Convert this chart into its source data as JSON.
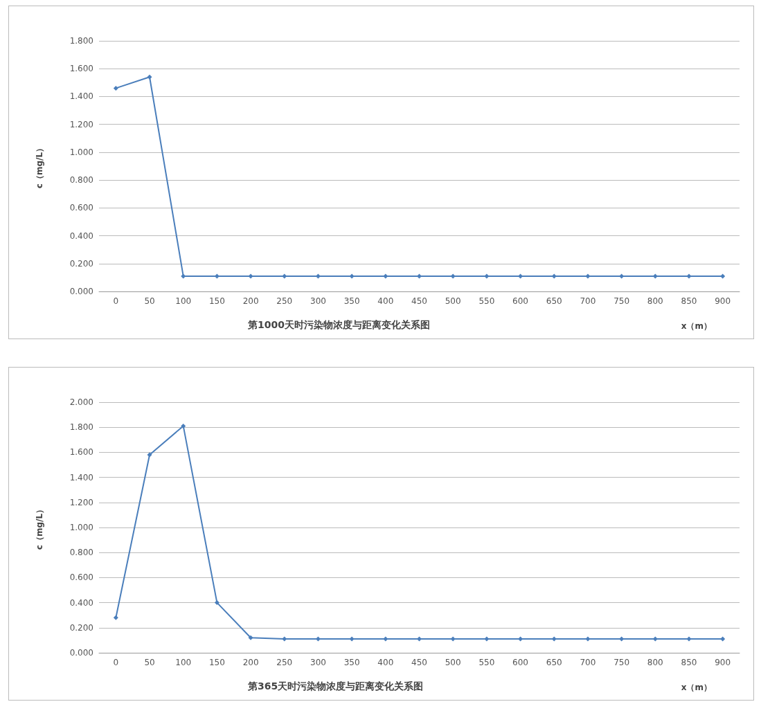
{
  "chart_data": [
    {
      "type": "line",
      "title": "第1000天时污染物浓度与距离变化关系图",
      "xlabel": "x（m）",
      "ylabel": "c（mg/L）",
      "categories": [
        "0",
        "50",
        "100",
        "150",
        "200",
        "250",
        "300",
        "350",
        "400",
        "450",
        "500",
        "550",
        "600",
        "650",
        "700",
        "750",
        "800",
        "850",
        "900"
      ],
      "series": [
        {
          "color": "#4a7ebb",
          "values": [
            1.46,
            1.54,
            0.11,
            0.11,
            0.11,
            0.11,
            0.11,
            0.11,
            0.11,
            0.11,
            0.11,
            0.11,
            0.11,
            0.11,
            0.11,
            0.11,
            0.11,
            0.11,
            0.11
          ]
        }
      ],
      "ylim": [
        0,
        1.8
      ],
      "yticks": [
        {
          "value": 0,
          "label": "0.000"
        },
        {
          "value": 0.2,
          "label": "0.200"
        },
        {
          "value": 0.4,
          "label": "0.400"
        },
        {
          "value": 0.6,
          "label": "0.600"
        },
        {
          "value": 0.8,
          "label": "0.800"
        },
        {
          "value": 1,
          "label": "1.000"
        },
        {
          "value": 1.2,
          "label": "1.200"
        },
        {
          "value": 1.4,
          "label": "1.400"
        },
        {
          "value": 1.6,
          "label": "1.600"
        },
        {
          "value": 1.8,
          "label": "1.800"
        }
      ],
      "grid": "y",
      "marker": "diamond",
      "line_style": "solid"
    },
    {
      "type": "line",
      "title": "第365天时污染物浓度与距离变化关系图",
      "xlabel": "x（m）",
      "ylabel": "c（mg/L）",
      "categories": [
        "0",
        "50",
        "100",
        "150",
        "200",
        "250",
        "300",
        "350",
        "400",
        "450",
        "500",
        "550",
        "600",
        "650",
        "700",
        "750",
        "800",
        "850",
        "900"
      ],
      "series": [
        {
          "color": "#4a7ebb",
          "values": [
            0.28,
            1.58,
            1.81,
            0.4,
            0.12,
            0.11,
            0.11,
            0.11,
            0.11,
            0.11,
            0.11,
            0.11,
            0.11,
            0.11,
            0.11,
            0.11,
            0.11,
            0.11,
            0.11
          ]
        }
      ],
      "ylim": [
        0,
        2.0
      ],
      "yticks": [
        {
          "value": 0,
          "label": "0.000"
        },
        {
          "value": 0.2,
          "label": "0.200"
        },
        {
          "value": 0.4,
          "label": "0.400"
        },
        {
          "value": 0.6,
          "label": "0.600"
        },
        {
          "value": 0.8,
          "label": "0.800"
        },
        {
          "value": 1,
          "label": "1.000"
        },
        {
          "value": 1.2,
          "label": "1.200"
        },
        {
          "value": 1.4,
          "label": "1.400"
        },
        {
          "value": 1.6,
          "label": "1.600"
        },
        {
          "value": 1.8,
          "label": "1.800"
        },
        {
          "value": 2,
          "label": "2.000"
        }
      ],
      "grid": "y",
      "marker": "diamond",
      "line_style": "solid"
    }
  ]
}
